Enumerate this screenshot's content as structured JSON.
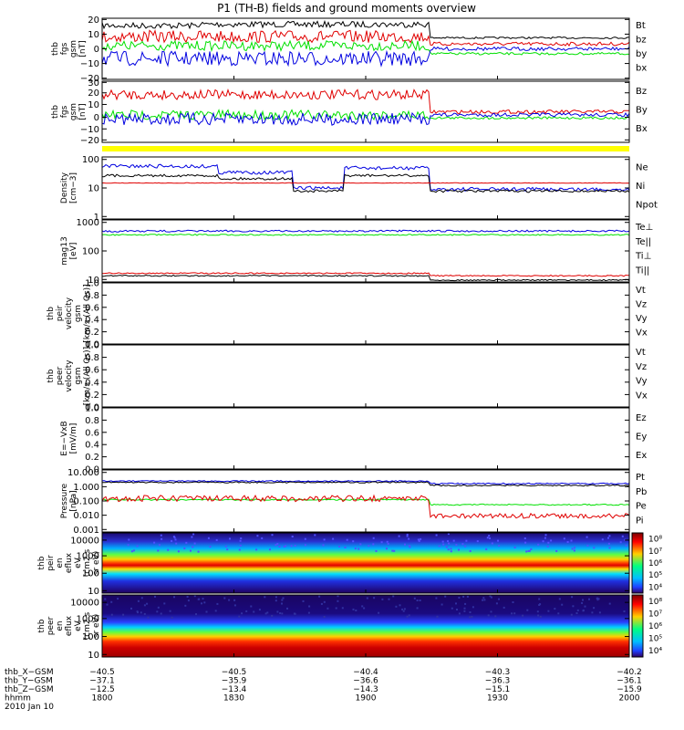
{
  "title": "P1 (TH-B) fields and ground moments overview",
  "colors": {
    "black": "#000000",
    "red": "#e00000",
    "green": "#00e000",
    "blue": "#0000e0",
    "yellow": "#ffff00"
  },
  "panels": [
    {
      "id": "p1",
      "ylabel": [
        "thb",
        "fgs",
        "gsm",
        "[nT]"
      ],
      "legend": [
        [
          "Bt",
          "black"
        ],
        [
          "bz",
          "red"
        ],
        [
          "by",
          "green"
        ],
        [
          "bx",
          "blue"
        ]
      ],
      "ticks": [
        [
          "20",
          "t0"
        ],
        [
          "10",
          "t1"
        ],
        [
          "0",
          "t2"
        ],
        [
          "−10",
          "t3"
        ],
        [
          "−20",
          "t4"
        ]
      ]
    },
    {
      "id": "p2",
      "ylabel": [
        "thb",
        "fgs",
        "gsm",
        "[nT]"
      ],
      "legend": [
        [
          "Bz",
          "red"
        ],
        [
          "By",
          "green"
        ],
        [
          "Bx",
          "blue"
        ]
      ],
      "ticks": [
        [
          "30",
          "t0"
        ],
        [
          "20",
          "t1"
        ],
        [
          "10",
          "t2"
        ],
        [
          "0",
          "t3"
        ],
        [
          "−10",
          "t4"
        ],
        [
          "−20",
          "t5"
        ]
      ]
    },
    {
      "id": "p3",
      "ylabel": [
        "Density",
        "[cm−3]"
      ],
      "legend": [
        [
          "Ne",
          "red"
        ],
        [
          "Ni",
          "black"
        ],
        [
          "Npot",
          "blue"
        ]
      ],
      "ticks": [
        [
          "100",
          "t0"
        ],
        [
          "10",
          "t1"
        ],
        [
          "1",
          "t2"
        ]
      ]
    },
    {
      "id": "p4",
      "ylabel": [
        "mag13",
        "[eV]"
      ],
      "legend": [
        [
          "Te⊥",
          "red"
        ],
        [
          "Te||",
          "black"
        ],
        [
          "Ti⊥",
          "blue"
        ],
        [
          "Ti||",
          "green"
        ]
      ],
      "ticks": [
        [
          "1000",
          "t0"
        ],
        [
          "100",
          "t1"
        ],
        [
          "10",
          "t2"
        ]
      ]
    },
    {
      "id": "p5",
      "ylabel": [
        "thb",
        "peir",
        "velocity",
        "gsm",
        "[km/s (All Qs)]"
      ],
      "legend": [
        [
          "Vt",
          "black"
        ],
        [
          "Vz",
          "red"
        ],
        [
          "Vy",
          "green"
        ],
        [
          "Vx",
          "blue"
        ]
      ],
      "ticks": [
        [
          "1.0",
          "t0"
        ],
        [
          "0.8",
          "t1"
        ],
        [
          "0.6",
          "t2"
        ],
        [
          "0.4",
          "t3"
        ],
        [
          "0.2",
          "t4"
        ],
        [
          "0.0",
          "t5"
        ]
      ]
    },
    {
      "id": "p6",
      "ylabel": [
        "thb",
        "peer",
        "velocity",
        "gsm",
        "[km/s (All Qs)]"
      ],
      "legend": [
        [
          "Vt",
          "black"
        ],
        [
          "Vz",
          "red"
        ],
        [
          "Vy",
          "green"
        ],
        [
          "Vx",
          "blue"
        ]
      ],
      "ticks": [
        [
          "1.0",
          "t0"
        ],
        [
          "0.8",
          "t1"
        ],
        [
          "0.6",
          "t2"
        ],
        [
          "0.4",
          "t3"
        ],
        [
          "0.2",
          "t4"
        ],
        [
          "0.0",
          "t5"
        ]
      ]
    },
    {
      "id": "p7",
      "ylabel": [
        "E=−VxB",
        "[mV/m]"
      ],
      "legend": [
        [
          "Ez",
          "red"
        ],
        [
          "Ey",
          "green"
        ],
        [
          "Ex",
          "blue"
        ]
      ],
      "ticks": [
        [
          "1.0",
          "t0"
        ],
        [
          "0.8",
          "t1"
        ],
        [
          "0.6",
          "t2"
        ],
        [
          "0.4",
          "t3"
        ],
        [
          "0.2",
          "t4"
        ],
        [
          "0.0",
          "t5"
        ]
      ]
    },
    {
      "id": "p8",
      "ylabel": [
        "Pressure",
        "[nPa]"
      ],
      "legend": [
        [
          "Pt",
          "black"
        ],
        [
          "Pb",
          "red"
        ],
        [
          "Pe",
          "green"
        ],
        [
          "Pi",
          "blue"
        ]
      ],
      "ticks": [
        [
          "10.000",
          "t0"
        ],
        [
          "1.000",
          "t1"
        ],
        [
          "0.100",
          "t2"
        ],
        [
          "0.010",
          "t3"
        ],
        [
          "0.001",
          "t4"
        ]
      ]
    },
    {
      "id": "p9",
      "ylabel": [
        "thb",
        "peir",
        "en",
        "eflux",
        "eV",
        "(cm2 s",
        "sr eV)"
      ],
      "ticks": [
        [
          "10000",
          "t0"
        ],
        [
          "1000",
          "t1"
        ],
        [
          "100",
          "t2"
        ],
        [
          "10",
          "t3"
        ]
      ]
    },
    {
      "id": "p10",
      "ylabel": [
        "thb",
        "peer",
        "en",
        "eflux",
        "eV",
        "(cm2 s",
        "sr eV)"
      ],
      "ticks": [
        [
          "10000",
          "t0"
        ],
        [
          "1000",
          "t1"
        ],
        [
          "100",
          "t2"
        ],
        [
          "10",
          "t3"
        ]
      ]
    }
  ],
  "colorbar1": [
    "10⁸",
    "10⁷",
    "10⁶",
    "10⁵",
    "10⁴"
  ],
  "colorbar2": [
    "10⁸",
    "10⁷",
    "10⁶",
    "10⁵",
    "10⁴"
  ],
  "xaxis": {
    "rows": [
      {
        "label": "thb_X−GSM",
        "values": [
          "−40.5",
          "−40.5",
          "−40.4",
          "−40.3",
          "−40.2"
        ]
      },
      {
        "label": "thb_Y−GSM",
        "values": [
          "−37.1",
          "−35.9",
          "−36.6",
          "−36.3",
          "−36.1"
        ]
      },
      {
        "label": "thb_Z−GSM",
        "values": [
          "−12.5",
          "−13.4",
          "−14.3",
          "−15.1",
          "−15.9"
        ]
      },
      {
        "label": "hhmm",
        "values": [
          "1800",
          "1830",
          "1900",
          "1930",
          "2000"
        ]
      }
    ],
    "date": "2010 Jan 10"
  },
  "chart_data": {
    "type": "line",
    "x_time": [
      "1800",
      "1830",
      "1900",
      "1930",
      "2000"
    ],
    "series": [
      {
        "name": "Bt",
        "values": [
          13,
          15,
          14,
          9,
          6
        ]
      },
      {
        "name": "bz",
        "values": [
          8,
          10,
          7,
          3,
          2
        ]
      },
      {
        "name": "by",
        "values": [
          0,
          2,
          3,
          -3,
          -4
        ]
      },
      {
        "name": "bx",
        "values": [
          -7,
          -8,
          -5,
          -1,
          0
        ]
      },
      {
        "name": "Ne",
        "values": [
          15,
          15,
          15,
          13,
          12
        ]
      },
      {
        "name": "Ni",
        "values": [
          35,
          20,
          25,
          10,
          10
        ]
      },
      {
        "name": "Npot",
        "values": [
          60,
          40,
          50,
          12,
          12
        ]
      },
      {
        "name": "Pt",
        "values": [
          1.2,
          0.9,
          1.2,
          0.5,
          0.5
        ]
      },
      {
        "name": "Pb",
        "values": [
          0.08,
          0.06,
          0.08,
          0.02,
          0.01
        ]
      },
      {
        "name": "Pe",
        "values": [
          0.04,
          0.04,
          0.04,
          0.04,
          0.04
        ]
      }
    ]
  }
}
